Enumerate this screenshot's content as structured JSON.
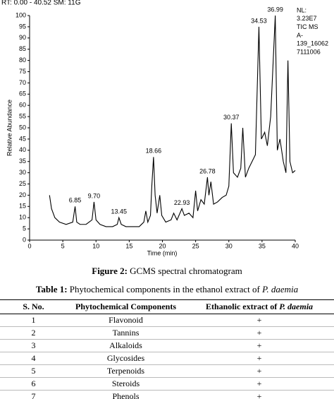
{
  "run_header": "RT: 0.00 - 40.52  SM: 11G",
  "chart_data": {
    "type": "line",
    "x_label": "Time (min)",
    "y_label": "Relative Abundance",
    "info": [
      "NL:",
      "3.23E7",
      "TIC MS",
      "A-",
      "139_16062",
      "7111006"
    ],
    "xlim": [
      0,
      40
    ],
    "ylim": [
      0,
      100
    ],
    "xticks": [
      0,
      5,
      10,
      15,
      20,
      25,
      30,
      35,
      40
    ],
    "yticks": [
      0,
      5,
      10,
      15,
      20,
      25,
      30,
      35,
      40,
      45,
      50,
      55,
      60,
      65,
      70,
      75,
      80,
      85,
      90,
      95,
      100
    ],
    "series": [
      {
        "color": "#000000",
        "x": [
          3,
          3.3,
          3.8,
          4.5,
          5.5,
          6.5,
          6.85,
          7.1,
          7.6,
          8.5,
          9.4,
          9.7,
          10,
          10.6,
          11.5,
          12.5,
          13.2,
          13.45,
          13.8,
          14.5,
          15.5,
          16.5,
          17.2,
          17.5,
          17.8,
          18.2,
          18.4,
          18.66,
          18.9,
          19.2,
          19.6,
          19.9,
          20.5,
          21.3,
          21.7,
          22.2,
          22.93,
          23.3,
          24,
          24.6,
          25,
          25.3,
          25.8,
          26.3,
          26.78,
          27,
          27.3,
          27.7,
          28.3,
          29,
          29.6,
          30,
          30.37,
          30.7,
          31.3,
          31.8,
          32.1,
          32.5,
          33,
          33.5,
          34,
          34.53,
          34.9,
          35.4,
          35.8,
          36.3,
          36.99,
          37.3,
          37.7,
          38.2,
          38.6,
          38.9,
          39.2,
          39.6,
          40
        ],
        "values": [
          20,
          14,
          10,
          8,
          7,
          8,
          15,
          8,
          7,
          7,
          9,
          17,
          9,
          7,
          6,
          6,
          7,
          10,
          7,
          6,
          6,
          6,
          8,
          13,
          8,
          11,
          24,
          37,
          20,
          12,
          20,
          11,
          8,
          9,
          12,
          9,
          14,
          11,
          12,
          10,
          22,
          13,
          18,
          16,
          28,
          20,
          26,
          16,
          17,
          19,
          20,
          24,
          52,
          30,
          28,
          32,
          50,
          28,
          32,
          35,
          38,
          95,
          45,
          48,
          42,
          55,
          100,
          40,
          45,
          35,
          30,
          80,
          35,
          30,
          31
        ]
      }
    ],
    "peaks": [
      {
        "x": 6.85,
        "y": 15,
        "label": "6.85"
      },
      {
        "x": 9.7,
        "y": 17,
        "label": "9.70"
      },
      {
        "x": 13.45,
        "y": 10,
        "label": "13.45"
      },
      {
        "x": 18.66,
        "y": 37,
        "label": "18.66"
      },
      {
        "x": 22.93,
        "y": 14,
        "label": "22.93"
      },
      {
        "x": 26.78,
        "y": 28,
        "label": "26.78"
      },
      {
        "x": 30.37,
        "y": 52,
        "label": "30.37"
      },
      {
        "x": 34.53,
        "y": 95,
        "label": "34.53"
      },
      {
        "x": 36.99,
        "y": 100,
        "label": "36.99"
      }
    ]
  },
  "figure": {
    "label": "Figure 2:",
    "caption": "GCMS spectral chromatogram"
  },
  "table": {
    "label": "Table 1:",
    "caption": "Phytochemical components in the ethanol extract of",
    "caption_italic": "P. daemia",
    "header": [
      "S. No.",
      "Phytochemical Components",
      "Ethanolic extract of",
      "P. daemia"
    ],
    "rows": [
      [
        "1",
        "Flavonoid",
        "+"
      ],
      [
        "2",
        "Tannins",
        "+"
      ],
      [
        "3",
        "Alkaloids",
        "+"
      ],
      [
        "4",
        "Glycosides",
        "+"
      ],
      [
        "5",
        "Terpenoids",
        "+"
      ],
      [
        "6",
        "Steroids",
        "+"
      ],
      [
        "7",
        "Phenols",
        "+"
      ]
    ]
  }
}
